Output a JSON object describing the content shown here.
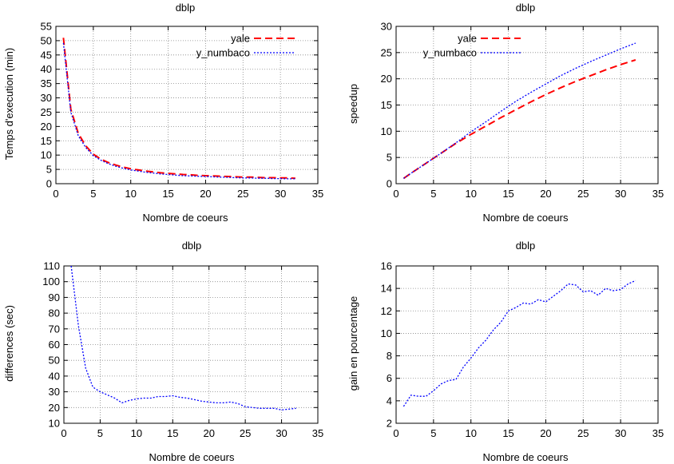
{
  "chart_data": [
    {
      "type": "line",
      "title": "dblp",
      "xlabel": "Nombre de coeurs",
      "ylabel": "Temps d'execution (min)",
      "xlim": [
        0,
        35
      ],
      "ylim": [
        0,
        55
      ],
      "xticks": [
        0,
        5,
        10,
        15,
        20,
        25,
        30,
        35
      ],
      "yticks": [
        0,
        5,
        10,
        15,
        20,
        25,
        30,
        35,
        40,
        45,
        50,
        55
      ],
      "grid": true,
      "legend_position": "top-right",
      "series": [
        {
          "name": "yale",
          "color": "#ff0000",
          "dash": "dashed",
          "x": [
            1,
            2,
            3,
            4,
            5,
            6,
            7,
            8,
            9,
            10,
            11,
            12,
            13,
            14,
            15,
            16,
            17,
            18,
            19,
            20,
            21,
            22,
            23,
            24,
            25,
            26,
            27,
            28,
            29,
            30,
            31,
            32
          ],
          "y": [
            51.0,
            26.0,
            17.5,
            13.2,
            10.3,
            8.6,
            7.4,
            6.5,
            5.8,
            5.2,
            4.8,
            4.4,
            4.1,
            3.8,
            3.6,
            3.4,
            3.2,
            3.1,
            2.9,
            2.8,
            2.7,
            2.6,
            2.5,
            2.4,
            2.3,
            2.3,
            2.2,
            2.1,
            2.1,
            2.0,
            2.0,
            1.9
          ]
        },
        {
          "name": "y_numbaco",
          "color": "#0000ff",
          "dash": "dotted",
          "x": [
            1,
            2,
            3,
            4,
            5,
            6,
            7,
            8,
            9,
            10,
            11,
            12,
            13,
            14,
            15,
            16,
            17,
            18,
            19,
            20,
            21,
            22,
            23,
            24,
            25,
            26,
            27,
            28,
            29,
            30,
            31,
            32
          ],
          "y": [
            49.2,
            25.0,
            16.7,
            12.6,
            9.8,
            8.2,
            7.0,
            6.1,
            5.4,
            4.8,
            4.4,
            4.0,
            3.7,
            3.4,
            3.2,
            3.0,
            2.8,
            2.7,
            2.6,
            2.5,
            2.4,
            2.3,
            2.2,
            2.1,
            2.0,
            2.0,
            1.9,
            1.9,
            1.8,
            1.8,
            1.7,
            1.7
          ]
        }
      ]
    },
    {
      "type": "line",
      "title": "dblp",
      "xlabel": "Nombre de coeurs",
      "ylabel": "speedup",
      "xlim": [
        0,
        35
      ],
      "ylim": [
        0,
        30
      ],
      "xticks": [
        0,
        5,
        10,
        15,
        20,
        25,
        30,
        35
      ],
      "yticks": [
        0,
        5,
        10,
        15,
        20,
        25,
        30
      ],
      "grid": true,
      "legend_position": "top-left",
      "series": [
        {
          "name": "yale",
          "color": "#ff0000",
          "dash": "dashed",
          "x": [
            1,
            2,
            4,
            6,
            8,
            10,
            12,
            14,
            16,
            18,
            20,
            22,
            24,
            26,
            28,
            30,
            32
          ],
          "y": [
            1,
            2.0,
            3.9,
            5.8,
            7.7,
            9.4,
            11.0,
            12.6,
            14.1,
            15.6,
            17.0,
            18.3,
            19.5,
            20.6,
            21.7,
            22.7,
            23.6
          ]
        },
        {
          "name": "y_numbaco",
          "color": "#0000ff",
          "dash": "dotted",
          "x": [
            1,
            2,
            4,
            6,
            8,
            10,
            12,
            14,
            16,
            18,
            20,
            22,
            24,
            26,
            28,
            30,
            32
          ],
          "y": [
            1,
            2.0,
            3.9,
            5.8,
            7.8,
            9.9,
            11.8,
            13.8,
            15.7,
            17.4,
            19.0,
            20.6,
            22.0,
            23.3,
            24.5,
            25.7,
            26.8
          ]
        }
      ]
    },
    {
      "type": "line",
      "title": "dblp",
      "xlabel": "Nombre de coeurs",
      "ylabel": "differences (sec)",
      "xlim": [
        0,
        35
      ],
      "ylim": [
        10,
        110
      ],
      "xticks": [
        0,
        5,
        10,
        15,
        20,
        25,
        30,
        35
      ],
      "yticks": [
        10,
        20,
        30,
        40,
        50,
        60,
        70,
        80,
        90,
        100,
        110
      ],
      "grid": true,
      "series": [
        {
          "color": "#0000ff",
          "dash": "dotted",
          "x": [
            1,
            2,
            3,
            4,
            5,
            6,
            7,
            8,
            9,
            10,
            11,
            12,
            13,
            14,
            15,
            16,
            17,
            18,
            19,
            20,
            21,
            22,
            23,
            24,
            25,
            26,
            27,
            28,
            29,
            30,
            31,
            32
          ],
          "y": [
            110,
            72,
            45,
            33,
            30,
            28,
            26,
            23,
            24.5,
            25.5,
            26,
            26,
            27,
            27,
            27.5,
            26.5,
            26,
            25,
            24,
            23.5,
            23,
            23,
            23.5,
            22.5,
            20.5,
            20,
            19.5,
            19.5,
            19.5,
            18.5,
            19,
            19.5
          ]
        }
      ]
    },
    {
      "type": "line",
      "title": "dblp",
      "xlabel": "Nombre de coeurs",
      "ylabel": "gain en pourcentage",
      "xlim": [
        0,
        35
      ],
      "ylim": [
        2,
        16
      ],
      "xticks": [
        0,
        5,
        10,
        15,
        20,
        25,
        30,
        35
      ],
      "yticks": [
        2,
        4,
        6,
        8,
        10,
        12,
        14,
        16
      ],
      "grid": true,
      "series": [
        {
          "color": "#0000ff",
          "dash": "dotted",
          "x": [
            1,
            2,
            3,
            4,
            5,
            6,
            7,
            8,
            9,
            10,
            11,
            12,
            13,
            14,
            15,
            16,
            17,
            18,
            19,
            20,
            21,
            22,
            23,
            24,
            25,
            26,
            27,
            28,
            29,
            30,
            31,
            32
          ],
          "y": [
            3.5,
            4.5,
            4.4,
            4.4,
            4.9,
            5.5,
            5.8,
            5.9,
            7.0,
            7.8,
            8.7,
            9.4,
            10.3,
            11.0,
            12.0,
            12.3,
            12.7,
            12.6,
            13.0,
            12.8,
            13.3,
            13.8,
            14.4,
            14.3,
            13.7,
            13.8,
            13.4,
            14.0,
            13.8,
            13.9,
            14.4,
            14.7
          ]
        }
      ]
    }
  ]
}
